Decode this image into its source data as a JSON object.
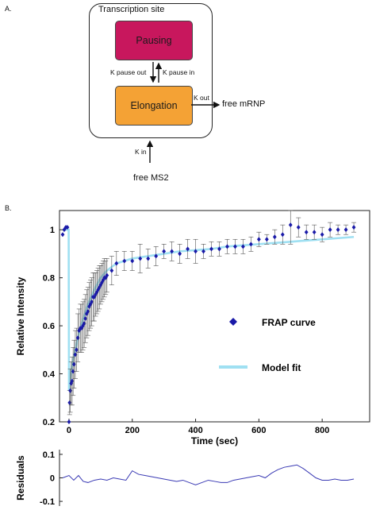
{
  "panel_a": {
    "label": "A.",
    "site_title": "Transcription site",
    "pausing_label": "Pausing",
    "elongation_label": "Elongation",
    "k_pause_out": "K pause out",
    "k_pause_in": "K pause in",
    "k_out": "K out",
    "k_in": "K in",
    "free_mrnp": "free mRNP",
    "free_ms2": "free MS2",
    "colors": {
      "pausing": "#c8175d",
      "elongation": "#f4a235"
    }
  },
  "panel_b": {
    "label": "B."
  },
  "chart_data": [
    {
      "type": "scatter",
      "xlabel": "Time (sec)",
      "ylabel": "Relative Intensity",
      "xlim": [
        -30,
        950
      ],
      "ylim": [
        0.2,
        1.08
      ],
      "xticks": [
        0,
        200,
        400,
        600,
        800
      ],
      "xtick_labels": [
        "0",
        "200",
        "400",
        "600",
        "800"
      ],
      "yticks": [
        0.2,
        0.4,
        0.6,
        0.8,
        1.0
      ],
      "ytick_labels": [
        "0.2",
        "0.4",
        "0.6",
        "0.8",
        "1"
      ],
      "grid": false,
      "legend_position": "center-right",
      "series": [
        {
          "name": "FRAP curve",
          "color": "#1a1aa8",
          "marker": "diamond",
          "x": [
            -20,
            -15,
            -10,
            -5,
            0,
            2,
            4,
            7,
            10,
            13,
            16,
            20,
            24,
            28,
            32,
            36,
            40,
            44,
            48,
            52,
            56,
            60,
            64,
            68,
            72,
            76,
            80,
            84,
            88,
            92,
            96,
            100,
            104,
            108,
            112,
            116,
            120,
            135,
            150,
            175,
            200,
            225,
            250,
            275,
            300,
            325,
            350,
            375,
            400,
            425,
            450,
            475,
            500,
            525,
            550,
            575,
            600,
            625,
            650,
            675,
            700,
            725,
            750,
            775,
            800,
            825,
            850,
            875,
            900
          ],
          "y": [
            0.98,
            1.0,
            1.01,
            1.01,
            0.2,
            0.28,
            0.33,
            0.36,
            0.37,
            0.41,
            0.44,
            0.48,
            0.5,
            0.55,
            0.58,
            0.59,
            0.59,
            0.6,
            0.61,
            0.63,
            0.65,
            0.66,
            0.68,
            0.69,
            0.7,
            0.72,
            0.72,
            0.73,
            0.74,
            0.75,
            0.76,
            0.77,
            0.78,
            0.79,
            0.8,
            0.8,
            0.81,
            0.83,
            0.86,
            0.87,
            0.87,
            0.88,
            0.88,
            0.89,
            0.91,
            0.91,
            0.9,
            0.92,
            0.91,
            0.91,
            0.92,
            0.92,
            0.93,
            0.93,
            0.93,
            0.94,
            0.96,
            0.96,
            0.97,
            0.98,
            1.02,
            1.01,
            0.99,
            0.99,
            0.98,
            1.0,
            1.0,
            1.0,
            1.01
          ],
          "error": [
            0,
            0,
            0,
            0,
            0,
            0.05,
            0.09,
            0.09,
            0.1,
            0.1,
            0.1,
            0.1,
            0.09,
            0.1,
            0.09,
            0.1,
            0.1,
            0.1,
            0.1,
            0.1,
            0.1,
            0.1,
            0.1,
            0.1,
            0.1,
            0.1,
            0.1,
            0.09,
            0.09,
            0.09,
            0.09,
            0.08,
            0.08,
            0.08,
            0.08,
            0.07,
            0.07,
            0.06,
            0.05,
            0.04,
            0.04,
            0.06,
            0.04,
            0.04,
            0.03,
            0.04,
            0.04,
            0.04,
            0.05,
            0.03,
            0.03,
            0.03,
            0.03,
            0.03,
            0.03,
            0.03,
            0.03,
            0.02,
            0.03,
            0.04,
            0.08,
            0.04,
            0.03,
            0.03,
            0.03,
            0.03,
            0.02,
            0.02,
            0.02
          ]
        },
        {
          "name": "Model fit",
          "color": "#9fe0f2",
          "x": [
            -20,
            -10,
            -3,
            -1,
            0,
            1,
            3,
            5,
            8,
            10,
            15,
            20,
            30,
            40,
            50,
            60,
            80,
            100,
            120,
            150,
            200,
            250,
            300,
            350,
            400,
            450,
            500,
            550,
            600,
            650,
            700,
            750,
            800,
            850,
            900
          ],
          "y": [
            1.0,
            1.0,
            1.0,
            1.0,
            0.33,
            0.35,
            0.37,
            0.39,
            0.42,
            0.44,
            0.47,
            0.5,
            0.56,
            0.61,
            0.65,
            0.69,
            0.75,
            0.8,
            0.83,
            0.86,
            0.88,
            0.89,
            0.9,
            0.91,
            0.915,
            0.92,
            0.93,
            0.935,
            0.94,
            0.945,
            0.95,
            0.955,
            0.96,
            0.965,
            0.97
          ]
        }
      ]
    },
    {
      "type": "line",
      "xlabel": "",
      "ylabel": "Residuals",
      "xlim": [
        -30,
        950
      ],
      "ylim": [
        -0.12,
        0.12
      ],
      "yticks": [
        -0.1,
        0,
        0.1
      ],
      "ytick_labels": [
        "-0.1",
        "0",
        "0.1"
      ],
      "grid": false,
      "series": [
        {
          "color": "#3a3ab4",
          "x": [
            -20,
            0,
            15,
            30,
            45,
            60,
            80,
            100,
            120,
            140,
            160,
            180,
            200,
            220,
            240,
            260,
            280,
            300,
            320,
            340,
            360,
            380,
            400,
            420,
            440,
            460,
            480,
            500,
            520,
            540,
            560,
            580,
            600,
            620,
            640,
            660,
            680,
            700,
            720,
            740,
            760,
            780,
            800,
            820,
            840,
            860,
            880,
            900
          ],
          "y": [
            0.0,
            0.01,
            -0.01,
            0.01,
            -0.015,
            -0.02,
            -0.01,
            -0.005,
            -0.01,
            0.0,
            -0.005,
            -0.01,
            0.03,
            0.015,
            0.01,
            0.005,
            0.0,
            -0.005,
            -0.01,
            -0.015,
            -0.01,
            -0.02,
            -0.03,
            -0.02,
            -0.01,
            -0.015,
            -0.02,
            -0.02,
            -0.01,
            -0.005,
            0.0,
            0.005,
            0.01,
            0.0,
            0.02,
            0.035,
            0.045,
            0.05,
            0.055,
            0.04,
            0.02,
            0.0,
            -0.01,
            -0.01,
            -0.005,
            -0.01,
            -0.01,
            -0.005
          ]
        }
      ]
    }
  ]
}
